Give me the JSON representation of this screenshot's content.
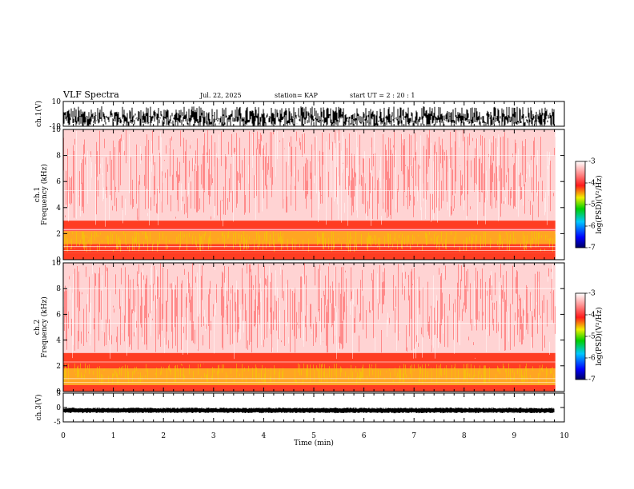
{
  "header": {
    "title": "VLF Spectra",
    "date": "Jul. 22, 2025",
    "station": "station= KAP",
    "start": "start  UT =   2 : 20 : 1"
  },
  "chart_data": [
    {
      "type": "line",
      "name": "ch1-waveform",
      "ylabel": "ch.1(V)",
      "ylim": [
        -10,
        10
      ],
      "yticks": [
        "10",
        "-10"
      ],
      "xlim": [
        0,
        10
      ]
    },
    {
      "type": "heatmap",
      "name": "ch1-spectrogram",
      "ylabel": "ch.1\nFrequency (kHz)",
      "ylabel_lines": [
        "ch.1",
        "Frequency (kHz)"
      ],
      "ylim": [
        0,
        10
      ],
      "yticks": [
        "0",
        "2",
        "4",
        "6",
        "8",
        "10"
      ],
      "xlim": [
        0,
        9.82
      ],
      "colorbar": {
        "label": "log(PSD)(V²/Hz)",
        "range": [
          -7,
          -3
        ],
        "ticks": [
          "-3",
          "-4",
          "-5",
          "-6",
          "-7"
        ]
      },
      "bands": [
        {
          "from_khz": 0,
          "to_khz": 0.5,
          "level": -4.3
        },
        {
          "from_khz": 0.5,
          "to_khz": 1.2,
          "level": -4.2
        },
        {
          "from_khz": 1.2,
          "to_khz": 2.2,
          "level": -4.9
        },
        {
          "from_khz": 2.2,
          "to_khz": 2.4,
          "level": -3.6
        },
        {
          "from_khz": 2.4,
          "to_khz": 3.0,
          "level": -4.4
        },
        {
          "from_khz": 3.0,
          "to_khz": 10,
          "level": -3.5
        }
      ]
    },
    {
      "type": "heatmap",
      "name": "ch2-spectrogram",
      "ylabel": "ch.2\nFrequency (kHz)",
      "ylabel_lines": [
        "ch.2",
        "Frequency (kHz)"
      ],
      "ylim": [
        0,
        10
      ],
      "yticks": [
        "0",
        "2",
        "4",
        "6",
        "8",
        "10"
      ],
      "xlim": [
        0,
        9.82
      ],
      "colorbar": {
        "label": "log(PSD)(V²/Hz)",
        "range": [
          -7,
          -3
        ],
        "ticks": [
          "-3",
          "-4",
          "-5",
          "-6",
          "-7"
        ]
      },
      "bands": [
        {
          "from_khz": 0,
          "to_khz": 0.5,
          "level": -4.3
        },
        {
          "from_khz": 0.5,
          "to_khz": 1.8,
          "level": -4.9
        },
        {
          "from_khz": 1.8,
          "to_khz": 2.2,
          "level": -4.4
        },
        {
          "from_khz": 2.2,
          "to_khz": 3.0,
          "level": -4.2
        },
        {
          "from_khz": 3.0,
          "to_khz": 10,
          "level": -3.4
        }
      ]
    },
    {
      "type": "line",
      "name": "ch3-waveform",
      "ylabel": "ch.3(V)",
      "ylim": [
        -5,
        5
      ],
      "yticks": [
        "5",
        "0",
        "-5"
      ],
      "constant_value": -1,
      "xlim": [
        0,
        10
      ]
    }
  ],
  "xaxis": {
    "label": "Time (min)",
    "ticks": [
      "0",
      "1",
      "2",
      "3",
      "4",
      "5",
      "6",
      "7",
      "8",
      "9",
      "10"
    ],
    "range": [
      0,
      10
    ],
    "data_end": 9.82
  },
  "colors": {
    "white": "#ffffff",
    "red": "#ff1a1a",
    "yellow": "#f0f000",
    "green": "#00d000",
    "blue": "#0000ff",
    "navy": "#000060"
  }
}
